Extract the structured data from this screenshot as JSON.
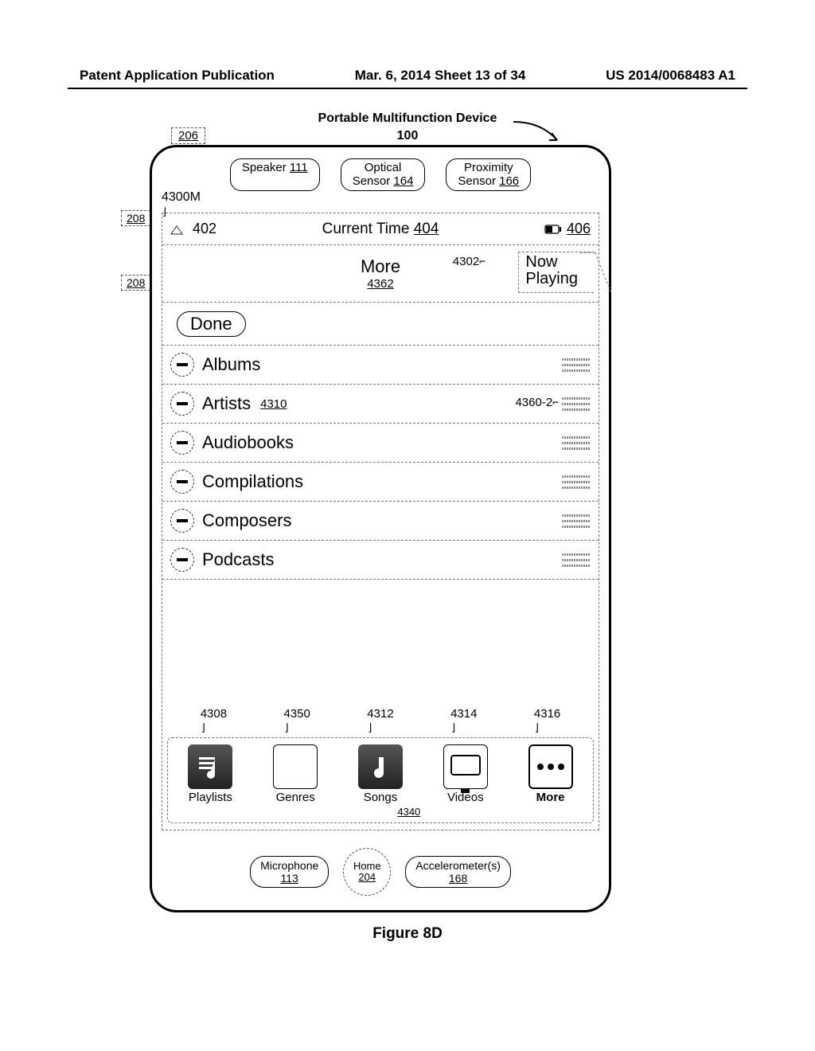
{
  "header": {
    "left": "Patent Application Publication",
    "center": "Mar. 6, 2014  Sheet 13 of 34",
    "right": "US 2014/0068483 A1"
  },
  "device": {
    "title": "Portable Multifunction Device",
    "number": "100",
    "ref206": "206",
    "ref208": "208",
    "ref4300m": "4300M"
  },
  "sensors": {
    "speaker": {
      "label": "Speaker",
      "ref": "111"
    },
    "optical": {
      "label": "Optical\nSensor",
      "ref": "164"
    },
    "proximity": {
      "label": "Proximity\nSensor",
      "ref": "166"
    }
  },
  "status": {
    "signalRef": "402",
    "centerLabel": "Current Time",
    "centerRef": "404",
    "batteryRef": "406"
  },
  "headerRow": {
    "moreLabel": "More",
    "moreRef": "4362",
    "ref4302": "4302",
    "nowPlaying1": "Now",
    "nowPlaying2": "Playing"
  },
  "doneLabel": "Done",
  "list": {
    "ref4310": "4310",
    "ref4360": "4360-2",
    "items": [
      {
        "label": "Albums"
      },
      {
        "label": "Artists",
        "showRef4310": true,
        "showRef4360": true
      },
      {
        "label": "Audiobooks"
      },
      {
        "label": "Compilations"
      },
      {
        "label": "Composers"
      },
      {
        "label": "Podcasts"
      }
    ]
  },
  "toolbar": {
    "refs": [
      "4308",
      "4350",
      "4312",
      "4314",
      "4316"
    ],
    "ref4340": "4340",
    "items": [
      {
        "label": "Playlists",
        "icon": "playlists"
      },
      {
        "label": "Genres",
        "icon": "genres"
      },
      {
        "label": "Songs",
        "icon": "songs"
      },
      {
        "label": "Videos",
        "icon": "videos"
      },
      {
        "label": "More",
        "icon": "more",
        "bold": true
      }
    ]
  },
  "bottom": {
    "mic": {
      "label": "Microphone",
      "ref": "113"
    },
    "home": {
      "label": "Home",
      "ref": "204"
    },
    "accel": {
      "label": "Accelerometer(s)",
      "ref": "168"
    }
  },
  "figureCaption": "Figure 8D"
}
